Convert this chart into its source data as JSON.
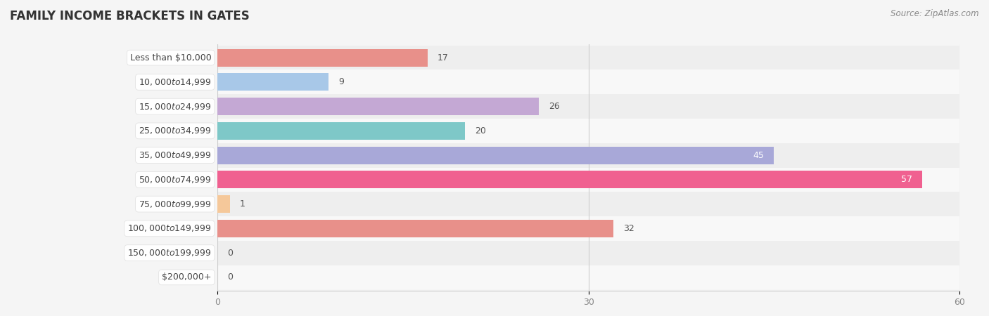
{
  "title": "FAMILY INCOME BRACKETS IN GATES",
  "source": "Source: ZipAtlas.com",
  "categories": [
    "Less than $10,000",
    "$10,000 to $14,999",
    "$15,000 to $24,999",
    "$25,000 to $34,999",
    "$35,000 to $49,999",
    "$50,000 to $74,999",
    "$75,000 to $99,999",
    "$100,000 to $149,999",
    "$150,000 to $199,999",
    "$200,000+"
  ],
  "values": [
    17,
    9,
    26,
    20,
    45,
    57,
    1,
    32,
    0,
    0
  ],
  "bar_colors": [
    "#E8908A",
    "#A8C8E8",
    "#C4A8D4",
    "#7EC8C8",
    "#A8A8D8",
    "#F06090",
    "#F5C89A",
    "#E8908A",
    "#A8C8E8",
    "#C4A8D4"
  ],
  "label_value_inside": [
    false,
    false,
    false,
    false,
    true,
    true,
    false,
    false,
    false,
    false
  ],
  "xlim": [
    0,
    60
  ],
  "xticks": [
    0,
    30,
    60
  ],
  "bg_color": "#f5f5f5",
  "row_colors": [
    "#eeeeee",
    "#f8f8f8"
  ],
  "title_fontsize": 12,
  "label_fontsize": 9,
  "value_fontsize": 9,
  "source_fontsize": 8.5
}
